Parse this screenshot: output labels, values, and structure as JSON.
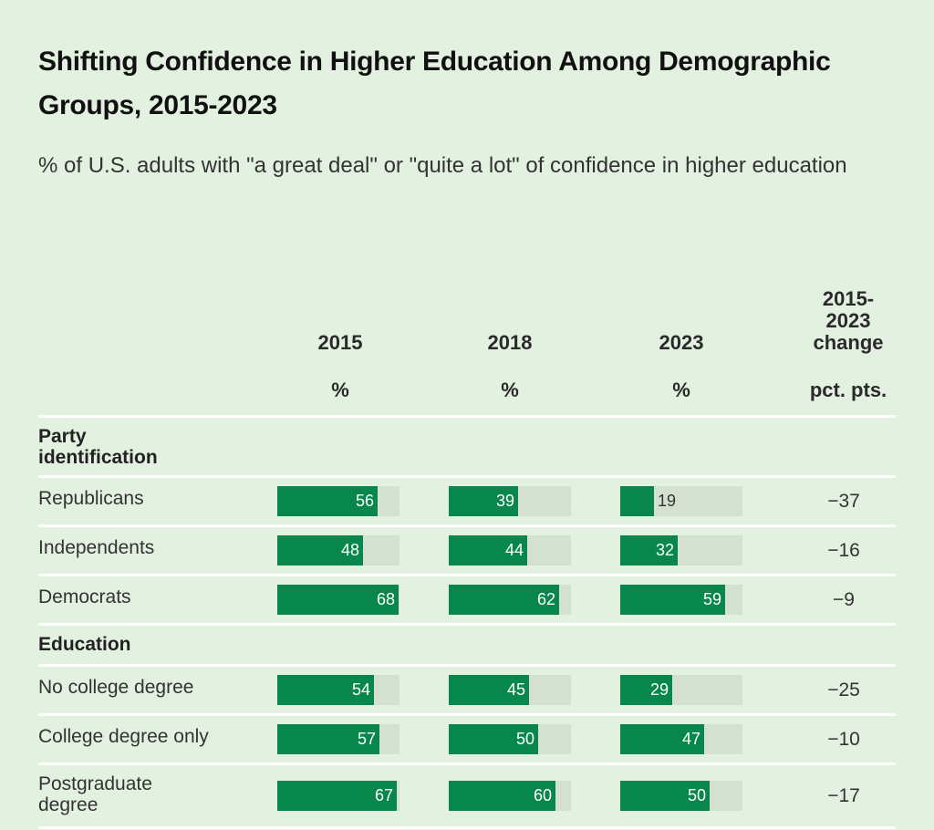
{
  "chart_data": {
    "type": "table",
    "title": "Shifting Confidence in Higher Education Among Demographic Groups, 2015-2023",
    "subtitle": "% of U.S. adults with \"a great deal\" or \"quite a lot\" of confidence in higher education",
    "columns": [
      {
        "year": "2015",
        "unit": "%"
      },
      {
        "year": "2018",
        "unit": "%"
      },
      {
        "year": "2023",
        "unit": "%"
      }
    ],
    "change_header": {
      "lines": [
        "2015-",
        "2023",
        "change"
      ],
      "unit": "pct. pts."
    },
    "value_range": [
      0,
      100
    ],
    "bar_color": "#08874c",
    "track_color": "#d4e1d1",
    "groups": [
      {
        "name_lines": [
          "Party",
          "identification"
        ],
        "rows": [
          {
            "label": "Republicans",
            "values": [
              56,
              39,
              19
            ],
            "change": "−37"
          },
          {
            "label": "Independents",
            "values": [
              48,
              44,
              32
            ],
            "change": "−16"
          },
          {
            "label": "Democrats",
            "values": [
              68,
              62,
              59
            ],
            "change": "−9"
          }
        ]
      },
      {
        "name_lines": [
          "Education"
        ],
        "rows": [
          {
            "label": "No college degree",
            "values": [
              54,
              45,
              29
            ],
            "change": "−25"
          },
          {
            "label": "College degree only",
            "values": [
              57,
              50,
              47
            ],
            "change": "−10"
          },
          {
            "label": "Postgraduate degree",
            "label_lines": [
              "Postgraduate",
              "degree"
            ],
            "values": [
              67,
              60,
              50
            ],
            "change": "−17"
          }
        ]
      }
    ]
  }
}
